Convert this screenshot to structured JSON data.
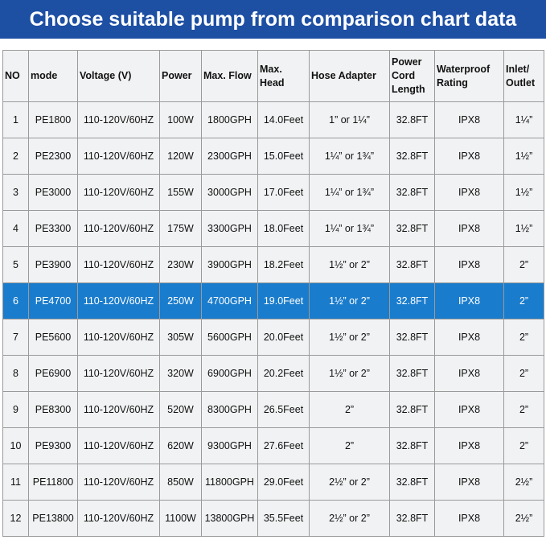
{
  "header": {
    "title": "Choose suitable pump from comparison chart data"
  },
  "table": {
    "columns": [
      "NO",
      "mode",
      "Voltage (V)",
      "Power",
      "Max. Flow",
      "Max. Head",
      "Hose Adapter",
      "Power Cord Length",
      "Waterproof Rating",
      "Inlet/ Outlet"
    ],
    "rows": [
      [
        "1",
        "PE1800",
        "110-120V/60HZ",
        "100W",
        "1800GPH",
        "14.0Feet",
        "1” or 1¼”",
        "32.8FT",
        "IPX8",
        "1¼”"
      ],
      [
        "2",
        "PE2300",
        "110-120V/60HZ",
        "120W",
        "2300GPH",
        "15.0Feet",
        "1¼” or 1¾”",
        "32.8FT",
        "IPX8",
        "1½”"
      ],
      [
        "3",
        "PE3000",
        "110-120V/60HZ",
        "155W",
        "3000GPH",
        "17.0Feet",
        "1¼” or 1¾”",
        "32.8FT",
        "IPX8",
        "1½”"
      ],
      [
        "4",
        "PE3300",
        "110-120V/60HZ",
        "175W",
        "3300GPH",
        "18.0Feet",
        "1¼” or 1¾”",
        "32.8FT",
        "IPX8",
        "1½”"
      ],
      [
        "5",
        "PE3900",
        "110-120V/60HZ",
        "230W",
        "3900GPH",
        "18.2Feet",
        "1½” or 2”",
        "32.8FT",
        "IPX8",
        "2”"
      ],
      [
        "6",
        "PE4700",
        "110-120V/60HZ",
        "250W",
        "4700GPH",
        "19.0Feet",
        "1½” or 2”",
        "32.8FT",
        "IPX8",
        "2”"
      ],
      [
        "7",
        "PE5600",
        "110-120V/60HZ",
        "305W",
        "5600GPH",
        "20.0Feet",
        "1½” or 2”",
        "32.8FT",
        "IPX8",
        "2”"
      ],
      [
        "8",
        "PE6900",
        "110-120V/60HZ",
        "320W",
        "6900GPH",
        "20.2Feet",
        "1½” or 2”",
        "32.8FT",
        "IPX8",
        "2”"
      ],
      [
        "9",
        "PE8300",
        "110-120V/60HZ",
        "520W",
        "8300GPH",
        "26.5Feet",
        "2”",
        "32.8FT",
        "IPX8",
        "2”"
      ],
      [
        "10",
        "PE9300",
        "110-120V/60HZ",
        "620W",
        "9300GPH",
        "27.6Feet",
        "2”",
        "32.8FT",
        "IPX8",
        "2”"
      ],
      [
        "11",
        "PE11800",
        "110-120V/60HZ",
        "850W",
        "11800GPH",
        "29.0Feet",
        "2½” or 2”",
        "32.8FT",
        "IPX8",
        "2½”"
      ],
      [
        "12",
        "PE13800",
        "110-120V/60HZ",
        "1100W",
        "13800GPH",
        "35.5Feet",
        "2½” or 2”",
        "32.8FT",
        "IPX8",
        "2½”"
      ]
    ]
  }
}
